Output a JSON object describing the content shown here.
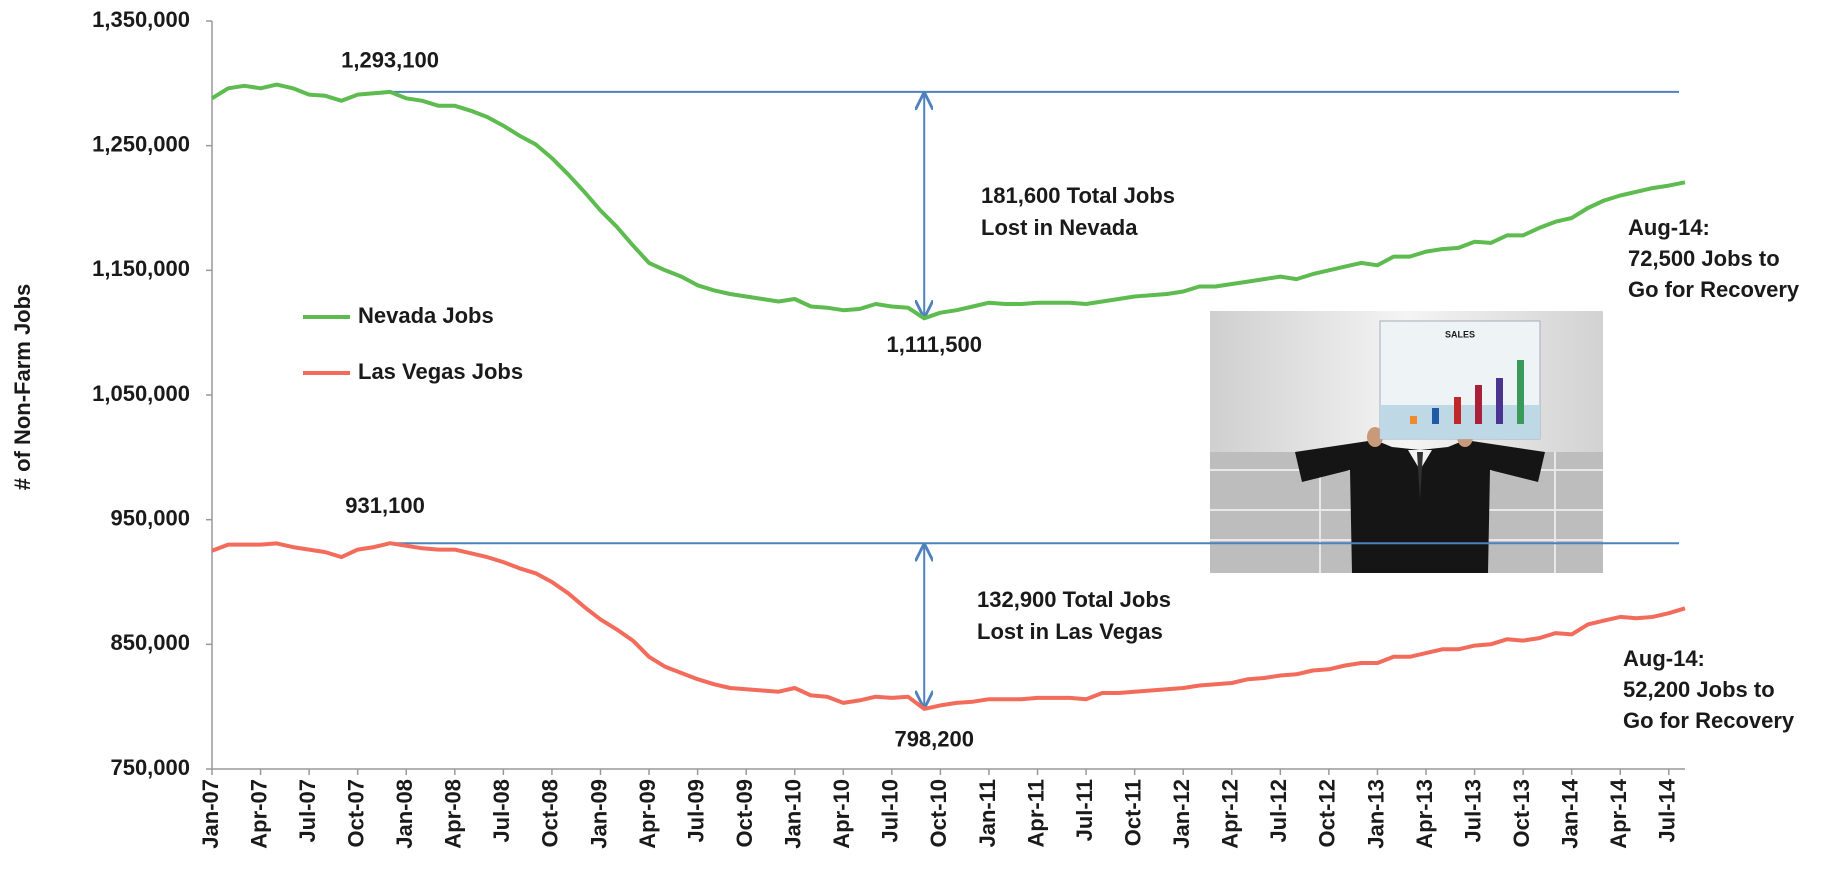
{
  "chart_data": {
    "type": "line",
    "y_label": "# of Non-Farm Jobs",
    "categories": [
      "Jan-07",
      null,
      null,
      "Apr-07",
      null,
      null,
      "Jul-07",
      null,
      null,
      "Oct-07",
      null,
      null,
      "Jan-08",
      null,
      null,
      "Apr-08",
      null,
      null,
      "Jul-08",
      null,
      null,
      "Oct-08",
      null,
      null,
      "Jan-09",
      null,
      null,
      "Apr-09",
      null,
      null,
      "Jul-09",
      null,
      null,
      "Oct-09",
      null,
      null,
      "Jan-10",
      null,
      null,
      "Apr-10",
      null,
      null,
      "Jul-10",
      null,
      null,
      "Oct-10",
      null,
      null,
      "Jan-11",
      null,
      null,
      "Apr-11",
      null,
      null,
      "Jul-11",
      null,
      null,
      "Oct-11",
      null,
      null,
      "Jan-12",
      null,
      null,
      "Apr-12",
      null,
      null,
      "Jul-12",
      null,
      null,
      "Oct-12",
      null,
      null,
      "Jan-13",
      null,
      null,
      "Apr-13",
      null,
      null,
      "Jul-13",
      null,
      null,
      "Oct-13",
      null,
      null,
      "Jan-14",
      null,
      null,
      "Apr-14",
      null,
      null,
      "Jul-14",
      null
    ],
    "series": [
      {
        "name": "Nevada Jobs",
        "color": "#5dbb4f",
        "values": [
          1288000,
          1296000,
          1298000,
          1296000,
          1299000,
          1296000,
          1291000,
          1290000,
          1286000,
          1291000,
          1292000,
          1293100,
          1288000,
          1286000,
          1282000,
          1282000,
          1278000,
          1273000,
          1266000,
          1258000,
          1251000,
          1240000,
          1227000,
          1213000,
          1198000,
          1185000,
          1170000,
          1156000,
          1150000,
          1145000,
          1138000,
          1134000,
          1131000,
          1129000,
          1127000,
          1125000,
          1127000,
          1121000,
          1120000,
          1118000,
          1119000,
          1123000,
          1121000,
          1120000,
          1111500,
          1116000,
          1118000,
          1121000,
          1124000,
          1123000,
          1123000,
          1124000,
          1124000,
          1124000,
          1123000,
          1125000,
          1127000,
          1129000,
          1130000,
          1131000,
          1133000,
          1137000,
          1137000,
          1139000,
          1141000,
          1143000,
          1145000,
          1143000,
          1147000,
          1150000,
          1153000,
          1156000,
          1154000,
          1161000,
          1161000,
          1165000,
          1167000,
          1168000,
          1173000,
          1172000,
          1178000,
          1178000,
          1184000,
          1189000,
          1192000,
          1200000,
          1206000,
          1210000,
          1213000,
          1216000,
          1218000,
          1220600
        ]
      },
      {
        "name": "Las Vegas Jobs",
        "color": "#f26b5b",
        "values": [
          925000,
          930000,
          930000,
          930000,
          931000,
          928000,
          926000,
          924000,
          920000,
          926000,
          928000,
          931100,
          929000,
          927000,
          926000,
          926000,
          923000,
          920000,
          916000,
          911000,
          907000,
          900000,
          891000,
          880000,
          870000,
          862000,
          853000,
          840000,
          832000,
          827000,
          822000,
          818000,
          815000,
          814000,
          813000,
          812000,
          815000,
          809000,
          808000,
          803000,
          805000,
          808000,
          807000,
          808000,
          798200,
          801000,
          803000,
          804000,
          806000,
          806000,
          806000,
          807000,
          807000,
          807000,
          806000,
          811000,
          811000,
          812000,
          813000,
          814000,
          815000,
          817000,
          818000,
          819000,
          822000,
          823000,
          825000,
          826000,
          829000,
          830000,
          833000,
          835000,
          835000,
          840000,
          840000,
          843000,
          846000,
          846000,
          849000,
          850000,
          854000,
          853000,
          855000,
          859000,
          858000,
          866000,
          869000,
          872000,
          871000,
          872000,
          875000,
          878900
        ]
      }
    ],
    "ylim": [
      750000,
      1350000
    ],
    "yticks": [
      {
        "value": 750000,
        "label": "750,000"
      },
      {
        "value": 850000,
        "label": "850,000"
      },
      {
        "value": 950000,
        "label": "950,000"
      },
      {
        "value": 1050000,
        "label": "1,050,000"
      },
      {
        "value": 1150000,
        "label": "1,150,000"
      },
      {
        "value": 1250000,
        "label": "1,250,000"
      },
      {
        "value": 1350000,
        "label": "1,350,000"
      }
    ],
    "grid": false,
    "reference_color": "#4f81bd",
    "annotations": {
      "nevada_peak": {
        "value": 1293100,
        "label": "1,293,100"
      },
      "nevada_trough": {
        "value": 1111500,
        "label": "1,111,500"
      },
      "nevada_loss": [
        "181,600 Total Jobs",
        "Lost in Nevada"
      ],
      "nevada_recovery": [
        "Aug-14:",
        "72,500 Jobs to",
        "Go for Recovery"
      ],
      "vegas_peak": {
        "value": 931100,
        "label": "931,100"
      },
      "vegas_trough": {
        "value": 798200,
        "label": "798,200"
      },
      "vegas_loss": [
        "132,900 Total Jobs",
        "Lost in Las Vegas"
      ],
      "vegas_recovery": [
        "Aug-14:",
        "52,200 Jobs to",
        "Go for Recovery"
      ]
    }
  },
  "photo": {
    "sign_title": "SALES"
  }
}
